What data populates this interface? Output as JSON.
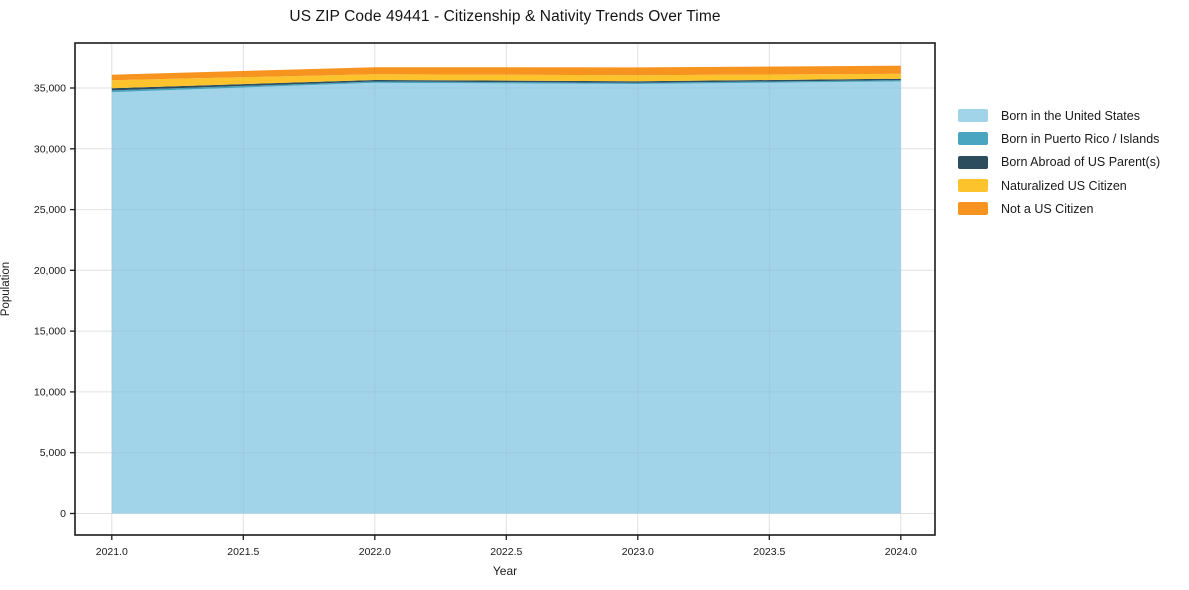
{
  "window": {
    "title": "US ZIP Code 49441 - Citizenship & Nativity Trends Over Time"
  },
  "chart_data": {
    "type": "area",
    "stacked": true,
    "title": "US ZIP Code 49441 - Citizenship & Nativity Trends Over Time",
    "xlabel": "Year",
    "ylabel": "Population",
    "x": [
      2021,
      2022,
      2023,
      2024
    ],
    "series": [
      {
        "name": "Born in the United States",
        "color": "#a1d3e9",
        "values": [
          34650,
          35430,
          35330,
          35540
        ]
      },
      {
        "name": "Born in Puerto Rico / Islands",
        "color": "#4aa5c0",
        "values": [
          150,
          100,
          100,
          100
        ]
      },
      {
        "name": "Born Abroad of US Parent(s)",
        "color": "#2b4d5e",
        "values": [
          180,
          130,
          120,
          120
        ]
      },
      {
        "name": "Naturalized US Citizen",
        "color": "#fcc32d",
        "values": [
          660,
          470,
          500,
          410
        ]
      },
      {
        "name": "Not a US Citizen",
        "color": "#f7941f",
        "values": [
          450,
          580,
          640,
          660
        ]
      }
    ],
    "xlim": [
      2020.86,
      2024.13
    ],
    "ylim": [
      -1770,
      38700
    ],
    "xticks": [
      2021.0,
      2021.5,
      2022.0,
      2022.5,
      2023.0,
      2023.5,
      2024.0
    ],
    "xtick_labels": [
      "2021.0",
      "2021.5",
      "2022.0",
      "2022.5",
      "2023.0",
      "2023.5",
      "2024.0"
    ],
    "yticks": [
      0,
      5000,
      10000,
      15000,
      20000,
      25000,
      30000,
      35000
    ],
    "ytick_labels": [
      "0",
      "5,000",
      "10,000",
      "15,000",
      "20,000",
      "25,000",
      "30,000",
      "35,000"
    ],
    "grid": true,
    "legend_position": "outside-right",
    "axis_color": "#1a1a1a",
    "grid_color_on_white": "#e9e9e9"
  }
}
